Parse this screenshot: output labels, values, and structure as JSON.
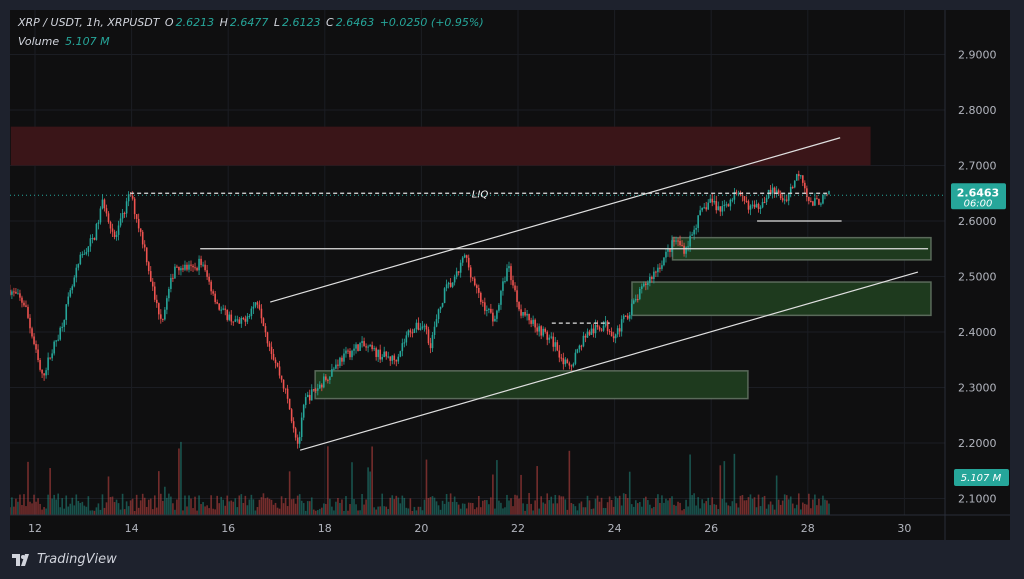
{
  "header": {
    "symbol": "XRP / USDT, 1h, XRPUSDT",
    "open_label": "O",
    "open": "2.6213",
    "high_label": "H",
    "high": "2.6477",
    "low_label": "L",
    "low": "2.6123",
    "close_label": "C",
    "close": "2.6463",
    "change": "+0.0250 (+0.95%)",
    "volume_label": "Volume",
    "volume": "5.107 M"
  },
  "price_badge": {
    "price": "2.6463",
    "countdown": "06:00"
  },
  "volume_badge": "5.107 M",
  "brand": "TradingView",
  "colors": {
    "up": "#26a69a",
    "down": "#ef5350",
    "supply_zone": "#3a1518",
    "demand_zone": "#1e3a1e",
    "lines": "#e0e0e0"
  },
  "chart_data": {
    "type": "candlestick",
    "timeframe": "1h",
    "x_ticks": [
      "12",
      "14",
      "16",
      "18",
      "20",
      "22",
      "24",
      "26",
      "28",
      "30"
    ],
    "y_ticks": [
      "2.9000",
      "2.8000",
      "2.7000",
      "2.6000",
      "2.5000",
      "2.4000",
      "2.3000",
      "2.2000",
      "2.1000"
    ],
    "ylim": [
      2.1,
      2.9
    ],
    "xlim": [
      11.5,
      31.5
    ],
    "grid": true,
    "approx_price_path": [
      [
        11.48,
        2.476
      ],
      [
        11.79,
        2.45
      ],
      [
        12.14,
        2.317
      ],
      [
        12.52,
        2.404
      ],
      [
        12.93,
        2.53
      ],
      [
        13.24,
        2.575
      ],
      [
        13.41,
        2.638
      ],
      [
        13.66,
        2.566
      ],
      [
        13.97,
        2.65
      ],
      [
        14.28,
        2.548
      ],
      [
        14.48,
        2.458
      ],
      [
        14.63,
        2.422
      ],
      [
        14.9,
        2.521
      ],
      [
        15.31,
        2.512
      ],
      [
        15.42,
        2.53
      ],
      [
        15.83,
        2.44
      ],
      [
        16.24,
        2.413
      ],
      [
        16.62,
        2.458
      ],
      [
        16.82,
        2.386
      ],
      [
        17.18,
        2.295
      ],
      [
        17.45,
        2.196
      ],
      [
        17.59,
        2.277
      ],
      [
        17.9,
        2.304
      ],
      [
        18.31,
        2.35
      ],
      [
        18.73,
        2.377
      ],
      [
        19.14,
        2.359
      ],
      [
        19.45,
        2.35
      ],
      [
        19.76,
        2.404
      ],
      [
        20.07,
        2.413
      ],
      [
        20.18,
        2.377
      ],
      [
        20.49,
        2.476
      ],
      [
        20.7,
        2.494
      ],
      [
        20.9,
        2.539
      ],
      [
        21.21,
        2.458
      ],
      [
        21.52,
        2.422
      ],
      [
        21.79,
        2.521
      ],
      [
        22.04,
        2.44
      ],
      [
        22.46,
        2.404
      ],
      [
        22.77,
        2.377
      ],
      [
        23.04,
        2.332
      ],
      [
        23.39,
        2.395
      ],
      [
        23.8,
        2.413
      ],
      [
        24.01,
        2.395
      ],
      [
        24.32,
        2.44
      ],
      [
        24.63,
        2.485
      ],
      [
        24.94,
        2.521
      ],
      [
        25.25,
        2.566
      ],
      [
        25.46,
        2.548
      ],
      [
        25.77,
        2.611
      ],
      [
        25.98,
        2.638
      ],
      [
        26.18,
        2.62
      ],
      [
        26.49,
        2.647
      ],
      [
        26.91,
        2.62
      ],
      [
        27.22,
        2.656
      ],
      [
        27.53,
        2.638
      ],
      [
        27.84,
        2.692
      ],
      [
        28.05,
        2.629
      ],
      [
        28.46,
        2.6463
      ]
    ],
    "drawings": {
      "supply_zone": {
        "from": 11.5,
        "to": 29.3,
        "low": 2.7,
        "high": 2.77
      },
      "demand_zones": [
        {
          "from": 25.2,
          "to": 30.55,
          "low": 2.53,
          "high": 2.57
        },
        {
          "from": 24.36,
          "to": 30.55,
          "low": 2.43,
          "high": 2.49
        },
        {
          "from": 17.8,
          "to": 26.76,
          "low": 2.28,
          "high": 2.33
        }
      ],
      "channel_upper": [
        [
          16.87,
          2.454
        ],
        [
          28.67,
          2.75
        ]
      ],
      "channel_lower": [
        [
          17.49,
          2.187
        ],
        [
          30.28,
          2.508
        ]
      ],
      "horizontal_level": {
        "price": 2.55,
        "from": 15.42,
        "to": 30.49
      },
      "liq_line": {
        "price": 2.65,
        "from": 13.97,
        "to": 28.46,
        "label": "LIQ"
      },
      "dashed_level": {
        "price": 2.416,
        "from": 22.7,
        "to": 23.9
      },
      "support_line": {
        "price": 2.6,
        "from": 26.95,
        "to": 28.7
      },
      "last_price": 2.6463
    }
  }
}
